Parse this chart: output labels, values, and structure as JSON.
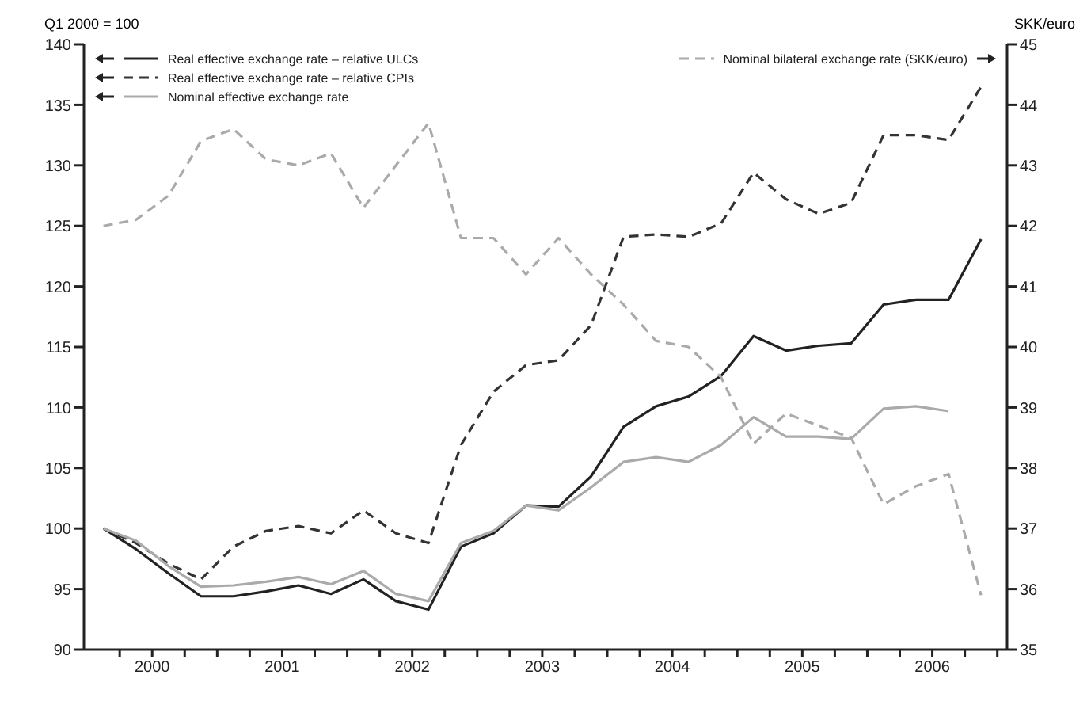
{
  "chart_data": {
    "type": "line",
    "ylabel": "Q1 2000 = 100",
    "y2label": "SKK/euro",
    "x": [
      2000,
      2000.25,
      2000.5,
      2000.75,
      2001,
      2001.25,
      2001.5,
      2001.75,
      2002,
      2002.25,
      2002.5,
      2002.75,
      2003,
      2003.25,
      2003.5,
      2003.75,
      2004,
      2004.25,
      2004.5,
      2004.75,
      2005,
      2005.25,
      2005.5,
      2005.75,
      2006,
      2006.25,
      2006.5,
      2006.75
    ],
    "xlim": [
      1999.85,
      2006.95
    ],
    "xticks": [
      {
        "value": 2000.125,
        "label": null
      },
      {
        "value": 2000.375,
        "label": "2000"
      },
      {
        "value": 2000.625,
        "label": null
      },
      {
        "value": 2000.875,
        "label": null
      },
      {
        "value": 2001.125,
        "label": null
      },
      {
        "value": 2001.375,
        "label": "2001"
      },
      {
        "value": 2001.625,
        "label": null
      },
      {
        "value": 2001.875,
        "label": null
      },
      {
        "value": 2002.125,
        "label": null
      },
      {
        "value": 2002.375,
        "label": "2002"
      },
      {
        "value": 2002.625,
        "label": null
      },
      {
        "value": 2002.875,
        "label": null
      },
      {
        "value": 2003.125,
        "label": null
      },
      {
        "value": 2003.375,
        "label": "2003"
      },
      {
        "value": 2003.625,
        "label": null
      },
      {
        "value": 2003.875,
        "label": null
      },
      {
        "value": 2004.125,
        "label": null
      },
      {
        "value": 2004.375,
        "label": "2004"
      },
      {
        "value": 2004.625,
        "label": null
      },
      {
        "value": 2004.875,
        "label": null
      },
      {
        "value": 2005.125,
        "label": null
      },
      {
        "value": 2005.375,
        "label": "2005"
      },
      {
        "value": 2005.625,
        "label": null
      },
      {
        "value": 2005.875,
        "label": null
      },
      {
        "value": 2006.125,
        "label": null
      },
      {
        "value": 2006.375,
        "label": "2006"
      },
      {
        "value": 2006.625,
        "label": null
      },
      {
        "value": 2006.875,
        "label": null
      }
    ],
    "ylim": [
      90,
      140
    ],
    "yticks": [
      90,
      95,
      100,
      105,
      110,
      115,
      120,
      125,
      130,
      135,
      140
    ],
    "y2lim": [
      35,
      45
    ],
    "y2ticks": [
      35,
      36,
      37,
      38,
      39,
      40,
      41,
      42,
      43,
      44,
      45
    ],
    "legend": "top",
    "marker": "none",
    "series": [
      {
        "name": "Real effective exchange rate – relative ULCs",
        "color": "#222222",
        "line_style": "solid",
        "values": [
          100,
          98.3,
          96.3,
          94.4,
          94.4,
          94.8,
          95.3,
          94.6,
          95.8,
          94,
          93.3,
          98.5,
          99.6,
          101.9,
          101.8,
          104.3,
          108.4,
          110.1,
          110.9,
          112.6,
          115.9,
          114.7,
          115.1,
          115.3,
          118.5,
          118.9,
          118.9,
          123.9
        ]
      },
      {
        "name": "Real effective exchange rate – relative CPIs",
        "color": "#333333",
        "line_style": "dashed",
        "values": [
          100,
          98.8,
          97.1,
          95.8,
          98.5,
          99.8,
          100.2,
          99.6,
          101.5,
          99.6,
          98.8,
          106.9,
          111.3,
          113.5,
          113.9,
          116.8,
          124.1,
          124.3,
          124.1,
          125.2,
          129.4,
          127.2,
          126,
          126.9,
          132.5,
          132.5,
          132.1,
          136.5
        ]
      },
      {
        "name": "Nominal effective exchange rate",
        "color": "#aaaaaa",
        "line_style": "solid",
        "values": [
          100,
          99,
          96.9,
          95.2,
          95.3,
          95.6,
          96,
          95.4,
          96.5,
          94.6,
          94,
          98.8,
          99.8,
          101.9,
          101.5,
          103.4,
          105.5,
          105.9,
          105.5,
          106.9,
          109.2,
          107.6,
          107.6,
          107.4,
          109.9,
          110.1,
          109.7,
          null
        ]
      },
      {
        "name": "Nominal bilateral exchange rate (SKK/euro)",
        "color": "#aaaaaa",
        "line_style": "dashed",
        "axis": "y2",
        "values": [
          42,
          42.1,
          42.5,
          43.4,
          43.6,
          43.1,
          43,
          43.2,
          42.3,
          43,
          43.7,
          41.8,
          41.8,
          41.2,
          41.8,
          41.2,
          40.7,
          40.1,
          40,
          39.5,
          38.4,
          38.9,
          38.7,
          38.5,
          37.4,
          37.7,
          37.9,
          35.9
        ]
      }
    ]
  }
}
